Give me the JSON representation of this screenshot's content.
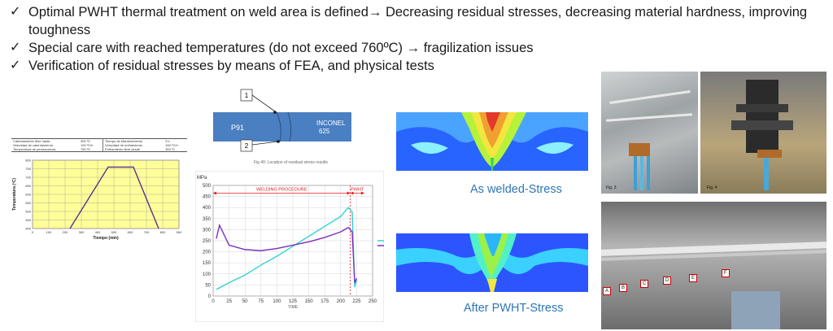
{
  "bullets": [
    {
      "text": "Optimal PWHT thermal treatment on weld area is defined→ Decreasing residual stresses, decreasing material hardness, improving toughness"
    },
    {
      "text": "Special care with reached temperatures (do not exceed 760ºC) → fragilization issues"
    },
    {
      "text": "Verification of residual stresses by means of FEA, and  physical tests"
    }
  ],
  "check_icon": "check-icon",
  "pwht_table": {
    "rows": [
      [
        "Calentamiento libre hasta",
        "300 ºC",
        "Tiempo de Mantenimiento",
        "3 h"
      ],
      [
        "Velocidad de calentamiento",
        "100 ºC/h",
        "Velocidad de enfriamiento",
        "150 ºC/h"
      ],
      [
        "Temperatura de permanencia",
        "760 ºC",
        "Enfriamiento libre desde",
        "300 ºC"
      ]
    ]
  },
  "chart_data": [
    {
      "type": "line",
      "title": "",
      "xlabel": "Tiempo (min)",
      "ylabel": "Temperatura (ºC)",
      "xlim": [
        0,
        900
      ],
      "ylim": [
        400,
        800
      ],
      "x_ticks": [
        0,
        100,
        200,
        300,
        400,
        500,
        600,
        700,
        800,
        900
      ],
      "y_ticks": [
        400,
        450,
        500,
        550,
        600,
        650,
        700,
        750,
        800
      ],
      "series": [
        {
          "name": "PWHT",
          "x": [
            230,
            465,
            620,
            775
          ],
          "y": [
            400,
            760,
            760,
            400
          ]
        }
      ],
      "colors": {
        "background": "#ffff99",
        "line": "#5b2d8e"
      }
    },
    {
      "type": "line",
      "title": "",
      "xlabel": "TIME",
      "ylabel": "MPa",
      "xlim": [
        0,
        250
      ],
      "ylim": [
        0,
        500
      ],
      "x_ticks": [
        0,
        25,
        50,
        75,
        100,
        125,
        150,
        175,
        200,
        225,
        250
      ],
      "y_ticks": [
        0,
        50,
        100,
        150,
        200,
        250,
        300,
        350,
        400,
        450,
        500
      ],
      "annotations": [
        {
          "text": "WELDING PROCEDURE",
          "x_from": 0,
          "x_to": 215
        },
        {
          "text": "PWHT",
          "x_from": 215,
          "x_to": 237
        }
      ],
      "series": [
        {
          "name": "1",
          "color": "#2fd3d3",
          "x": [
            5,
            25,
            50,
            75,
            100,
            125,
            150,
            175,
            200,
            212,
            218,
            222,
            225
          ],
          "y": [
            30,
            60,
            95,
            140,
            180,
            225,
            270,
            315,
            360,
            400,
            380,
            40,
            75
          ]
        },
        {
          "name": "2",
          "color": "#7b2fbf",
          "x": [
            5,
            10,
            25,
            50,
            75,
            100,
            125,
            150,
            175,
            200,
            212,
            218,
            222,
            225
          ],
          "y": [
            260,
            320,
            230,
            210,
            205,
            215,
            230,
            245,
            265,
            290,
            310,
            290,
            60,
            80
          ]
        }
      ]
    }
  ],
  "weld_diagram": {
    "label_left": "P91",
    "label_right_line1": "INCONEL",
    "label_right_line2": "625",
    "marker_top": "1",
    "marker_bottom": "2",
    "caption": "Fig 40: Location of residual stress results"
  },
  "captions": {
    "as_welded": "As welded-Stress",
    "after_pwht": "After PWHT-Stress"
  },
  "photos": {
    "fig3": "Fig. 3",
    "fig4": "Fig. 4",
    "strain_gauges": [
      "A",
      "B",
      "C",
      "D",
      "E",
      "F"
    ]
  }
}
